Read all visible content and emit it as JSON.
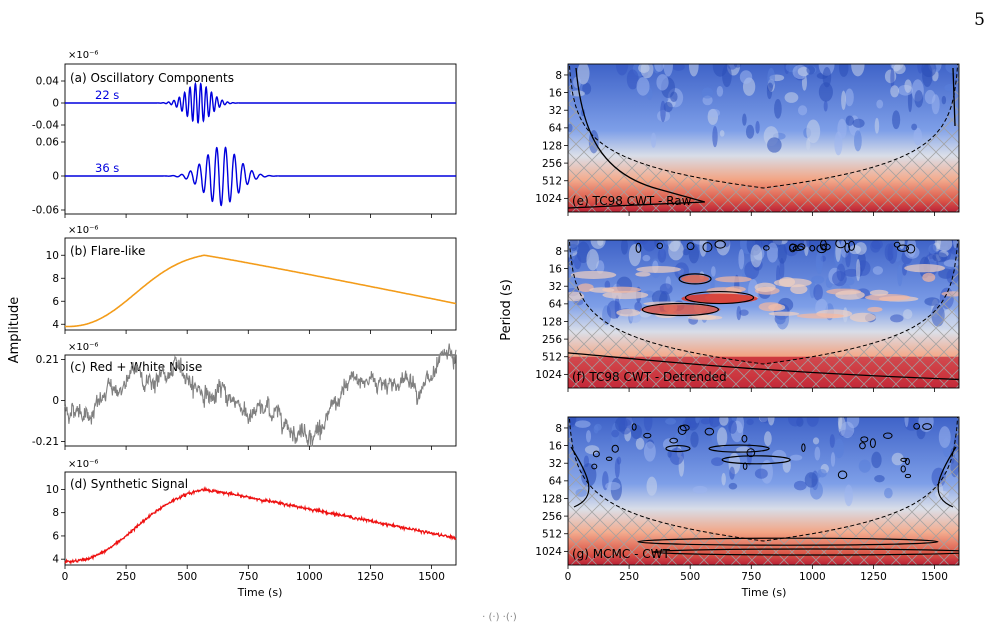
{
  "page_number": "5",
  "bottom_note": "· (·) ·(·)",
  "left_ylabel": "Amplitude",
  "right_ylabel": "Period (s)",
  "xlabel": "Time (s)",
  "x_ticks": [
    "0",
    "250",
    "500",
    "750",
    "1000",
    "1250",
    "1500"
  ],
  "period_ticks": [
    "8",
    "16",
    "32",
    "64",
    "128",
    "256",
    "512",
    "1024"
  ],
  "multiplier": "×10⁻⁶",
  "colors": {
    "blue": "#0000dd",
    "orange": "#f39c1a",
    "gray": "#808080",
    "red": "#ee1111"
  },
  "chart_data": [
    {
      "type": "line",
      "title": "(a) Oscillatory Components",
      "xlim": [
        0,
        1600
      ],
      "top": {
        "annotation": "22 s",
        "period": 22,
        "ylim": [
          -0.04,
          0.04
        ],
        "y_ticks": [
          "0.04",
          "0",
          "-0.04"
        ],
        "amplitude": 0.036,
        "center": 545,
        "width": 70
      },
      "bottom": {
        "annotation": "36 s",
        "period": 36,
        "ylim": [
          -0.06,
          0.06
        ],
        "y_ticks": [
          "0.06",
          "0",
          "-0.06"
        ],
        "amplitude": 0.052,
        "center": 640,
        "width": 95
      },
      "series": [
        {
          "values_desc": "wave packets"
        }
      ]
    },
    {
      "type": "line",
      "title": "(b) Flare-like",
      "xlim": [
        0,
        1600
      ],
      "ylim": [
        3.5,
        11.5
      ],
      "y_ticks": [
        "4",
        "6",
        "8",
        "10"
      ],
      "peak_time": 570,
      "peak_value": 10,
      "base_value": 3.8,
      "end_value": 5.8
    },
    {
      "type": "line",
      "title": "(c) Red + White Noise",
      "xlim": [
        0,
        1600
      ],
      "ylim": [
        -0.23,
        0.23
      ],
      "y_ticks": [
        "0.21",
        "0",
        "-0.21"
      ]
    },
    {
      "type": "line",
      "title": "(d) Synthetic Signal",
      "xlim": [
        0,
        1600
      ],
      "ylim": [
        3.5,
        11.5
      ],
      "y_ticks": [
        "4",
        "6",
        "8",
        "10"
      ]
    },
    {
      "type": "heatmap",
      "title": "(e) TC98 CWT - Raw",
      "xlim": [
        0,
        1600
      ],
      "period_range": [
        6,
        1600
      ],
      "y_scale": "log2"
    },
    {
      "type": "heatmap",
      "title": "(f) TC98 CWT - Detrended",
      "xlim": [
        0,
        1600
      ],
      "period_range": [
        6,
        1600
      ],
      "y_scale": "log2"
    },
    {
      "type": "heatmap",
      "title": "(g) MCMC - CWT",
      "xlim": [
        0,
        1600
      ],
      "period_range": [
        6,
        1600
      ],
      "y_scale": "log2"
    }
  ]
}
